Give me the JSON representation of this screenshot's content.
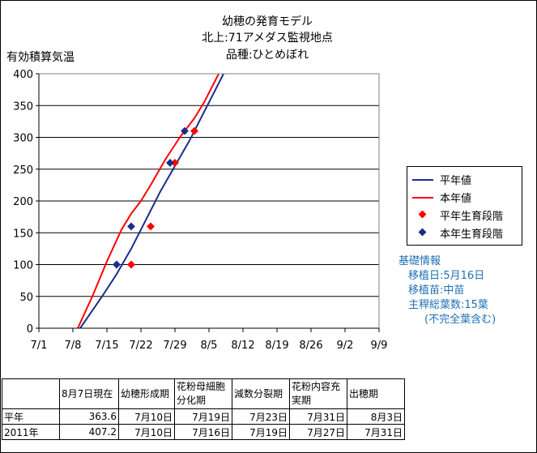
{
  "titles": [
    "幼穂の発育モデル",
    "北上:71アメダス監視地点",
    "品種:ひとめぼれ"
  ],
  "chart_data": {
    "type": "line",
    "ylabel": "有効積算気温",
    "ylim": [
      0,
      400
    ],
    "yticks": [
      0,
      50,
      100,
      150,
      200,
      250,
      300,
      350,
      400
    ],
    "xlim_days": [
      0,
      70
    ],
    "xticks": [
      {
        "day": 0,
        "label": "7/1"
      },
      {
        "day": 7,
        "label": "7/8"
      },
      {
        "day": 14,
        "label": "7/15"
      },
      {
        "day": 21,
        "label": "7/22"
      },
      {
        "day": 28,
        "label": "7/29"
      },
      {
        "day": 35,
        "label": "8/5"
      },
      {
        "day": 42,
        "label": "8/12"
      },
      {
        "day": 49,
        "label": "8/19"
      },
      {
        "day": 56,
        "label": "8/26"
      },
      {
        "day": 63,
        "label": "9/2"
      },
      {
        "day": 70,
        "label": "9/9"
      }
    ],
    "grid": "horizontal",
    "series": [
      {
        "name": "平年値",
        "kind": "line",
        "color": "#1a2d8c",
        "points": [
          [
            8.5,
            0
          ],
          [
            13,
            50
          ],
          [
            16,
            85
          ],
          [
            19,
            125
          ],
          [
            22,
            170
          ],
          [
            25,
            215
          ],
          [
            28,
            255
          ],
          [
            31,
            295
          ],
          [
            34,
            340
          ],
          [
            37,
            385
          ],
          [
            38,
            400
          ]
        ]
      },
      {
        "name": "本年値",
        "kind": "line",
        "color": "#ff0000",
        "points": [
          [
            8,
            0
          ],
          [
            11,
            50
          ],
          [
            14,
            105
          ],
          [
            17,
            155
          ],
          [
            19,
            180
          ],
          [
            21,
            200
          ],
          [
            23,
            225
          ],
          [
            26,
            265
          ],
          [
            29,
            300
          ],
          [
            32,
            330
          ],
          [
            34,
            355
          ],
          [
            36,
            385
          ],
          [
            37,
            400
          ]
        ]
      },
      {
        "name": "平年生育段階",
        "kind": "marker",
        "color": "#ff0000",
        "points": [
          [
            19,
            100
          ],
          [
            23,
            160
          ],
          [
            28,
            260
          ],
          [
            32,
            310
          ]
        ]
      },
      {
        "name": "本年生育段階",
        "kind": "marker",
        "color": "#1a2d8c",
        "points": [
          [
            16,
            100
          ],
          [
            19,
            160
          ],
          [
            27,
            260
          ],
          [
            30,
            310
          ]
        ]
      }
    ],
    "legend_position": "right"
  },
  "info": {
    "heading": "基礎情報",
    "lines": [
      "移植日:5月16日",
      "移植苗:中苗",
      "主稈総葉数:15葉",
      "(不完全葉含む)"
    ]
  },
  "table": {
    "headers": [
      "",
      "8月7日現在",
      "幼穂形成期",
      "花粉母細胞分化期",
      "減数分裂期",
      "花粉内容充実期",
      "出穂期"
    ],
    "rows": [
      [
        "平年",
        "363.6",
        "7月10日",
        "7月19日",
        "7月23日",
        "7月31日",
        "8月3日"
      ],
      [
        "2011年",
        "407.2",
        "7月10日",
        "7月16日",
        "7月19日",
        "7月27日",
        "7月31日"
      ]
    ]
  }
}
